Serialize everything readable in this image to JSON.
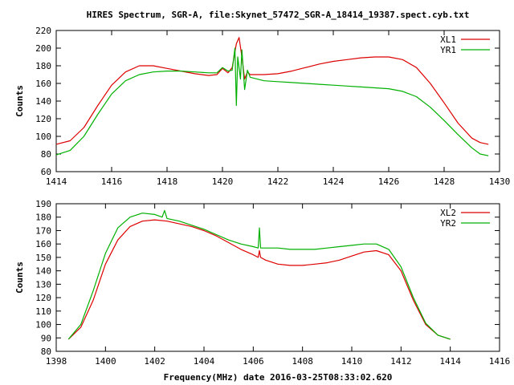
{
  "title": "HIRES Spectrum, SGR-A, file:Skynet_57472_SGR-A_18414_19387.spect.cyb.txt",
  "xlabel": "Frequency(MHz) date 2016-03-25T08:33:02.620",
  "colors": {
    "red": "#dd0000",
    "green": "#00b000",
    "axis": "#000000"
  },
  "chart_data": [
    {
      "type": "line",
      "ylabel": "Counts",
      "xlim": [
        1414,
        1430
      ],
      "ylim": [
        60,
        220
      ],
      "xticks": [
        1414,
        1416,
        1418,
        1420,
        1422,
        1424,
        1426,
        1428,
        1430
      ],
      "yticks": [
        60,
        80,
        100,
        120,
        140,
        160,
        180,
        200,
        220
      ],
      "legend_position": "top-right",
      "series": [
        {
          "name": "XL1",
          "color": "#dd0000",
          "x": [
            1414,
            1414.5,
            1415,
            1415.5,
            1416,
            1416.5,
            1417,
            1417.5,
            1418,
            1418.5,
            1419,
            1419.5,
            1419.8,
            1420,
            1420.2,
            1420.35,
            1420.5,
            1420.6,
            1420.7,
            1420.8,
            1420.9,
            1421,
            1421.5,
            1422,
            1422.5,
            1423,
            1423.5,
            1424,
            1424.5,
            1425,
            1425.5,
            1426,
            1426.5,
            1427,
            1427.5,
            1428,
            1428.5,
            1429,
            1429.3,
            1429.6
          ],
          "y": [
            91,
            95,
            110,
            135,
            158,
            173,
            180,
            180,
            177,
            174,
            171,
            169,
            170,
            177,
            172,
            178,
            205,
            212,
            190,
            165,
            173,
            170,
            170,
            171,
            174,
            178,
            182,
            185,
            187,
            189,
            190,
            190,
            187,
            178,
            160,
            138,
            115,
            98,
            93,
            91
          ]
        },
        {
          "name": "YR1",
          "color": "#00b000",
          "x": [
            1414,
            1414.5,
            1415,
            1415.5,
            1416,
            1416.5,
            1417,
            1417.5,
            1418,
            1418.5,
            1419,
            1419.5,
            1419.8,
            1420,
            1420.2,
            1420.35,
            1420.45,
            1420.5,
            1420.55,
            1420.65,
            1420.7,
            1420.8,
            1420.9,
            1421,
            1421.5,
            1422,
            1422.5,
            1423,
            1423.5,
            1424,
            1424.5,
            1425,
            1425.5,
            1426,
            1426.5,
            1427,
            1427.5,
            1428,
            1428.5,
            1429,
            1429.3,
            1429.6
          ],
          "y": [
            79,
            84,
            100,
            125,
            148,
            163,
            170,
            173,
            174,
            174,
            173,
            172,
            172,
            178,
            174,
            175,
            200,
            135,
            190,
            165,
            198,
            153,
            175,
            167,
            163,
            162,
            161,
            160,
            159,
            158,
            157,
            156,
            155,
            154,
            151,
            145,
            133,
            118,
            102,
            87,
            80,
            78
          ]
        }
      ]
    },
    {
      "type": "line",
      "ylabel": "Counts",
      "xlim": [
        1398,
        1416
      ],
      "ylim": [
        80,
        190
      ],
      "xticks": [
        1398,
        1400,
        1402,
        1404,
        1406,
        1408,
        1410,
        1412,
        1414,
        1416
      ],
      "yticks": [
        80,
        90,
        100,
        110,
        120,
        130,
        140,
        150,
        160,
        170,
        180,
        190
      ],
      "legend_position": "top-right",
      "series": [
        {
          "name": "XL2",
          "color": "#dd0000",
          "x": [
            1398.5,
            1399,
            1399.5,
            1400,
            1400.5,
            1401,
            1401.5,
            1402,
            1402.5,
            1403,
            1403.5,
            1404,
            1404.5,
            1405,
            1405.5,
            1406,
            1406.2,
            1406.25,
            1406.3,
            1406.5,
            1407,
            1407.5,
            1408,
            1408.5,
            1409,
            1409.5,
            1410,
            1410.5,
            1411,
            1411.5,
            1412,
            1412.5,
            1413,
            1413.5,
            1414
          ],
          "y": [
            89,
            98,
            118,
            145,
            163,
            173,
            177,
            178,
            177,
            175,
            173,
            170,
            166,
            161,
            156,
            152,
            150,
            155,
            150,
            148,
            145,
            144,
            144,
            145,
            146,
            148,
            151,
            154,
            155,
            152,
            140,
            118,
            100,
            92,
            89
          ]
        },
        {
          "name": "YR2",
          "color": "#00b000",
          "x": [
            1398.5,
            1399,
            1399.5,
            1400,
            1400.5,
            1401,
            1401.5,
            1402,
            1402.3,
            1402.4,
            1402.5,
            1403,
            1403.5,
            1404,
            1404.5,
            1405,
            1405.5,
            1406,
            1406.2,
            1406.25,
            1406.3,
            1406.5,
            1407,
            1407.5,
            1408,
            1408.5,
            1409,
            1409.5,
            1410,
            1410.5,
            1411,
            1411.5,
            1412,
            1412.5,
            1413,
            1413.5,
            1414
          ],
          "y": [
            89,
            100,
            125,
            153,
            172,
            180,
            183,
            182,
            180,
            185,
            179,
            177,
            174,
            171,
            167,
            163,
            160,
            158,
            157,
            172,
            157,
            157,
            157,
            156,
            156,
            156,
            157,
            158,
            159,
            160,
            160,
            156,
            143,
            120,
            101,
            92,
            89
          ]
        }
      ]
    }
  ]
}
